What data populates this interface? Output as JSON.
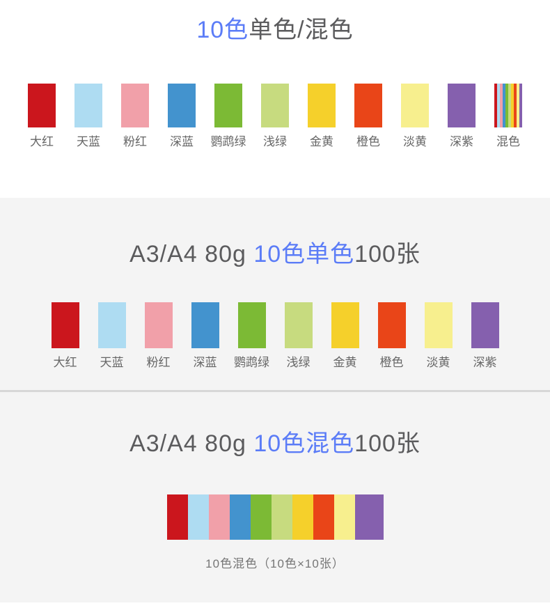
{
  "page": {
    "background": "#ffffff",
    "section_background": "#f4f4f4",
    "accent_blue": "#5b7cf7",
    "title_gray": "#5b5b5d",
    "label_gray": "#666666"
  },
  "colors": [
    {
      "name": "大红",
      "hex": "#cb161d"
    },
    {
      "name": "天蓝",
      "hex": "#aedcf2"
    },
    {
      "name": "粉红",
      "hex": "#f1a0a9"
    },
    {
      "name": "深蓝",
      "hex": "#4393ce"
    },
    {
      "name": "鹦鹉绿",
      "hex": "#7cba35"
    },
    {
      "name": "浅绿",
      "hex": "#c7db7f"
    },
    {
      "name": "金黄",
      "hex": "#f5d02b"
    },
    {
      "name": "橙色",
      "hex": "#e94518"
    },
    {
      "name": "淡黄",
      "hex": "#f7ef8e"
    },
    {
      "name": "深紫",
      "hex": "#8560ae"
    }
  ],
  "mixed_swatch": {
    "label": "混色"
  },
  "sections": {
    "intro": {
      "title_blue": "10色",
      "title_rest": "单色/混色"
    },
    "single": {
      "title_prefix": "A3/A4 80g ",
      "title_blue": "10色单色",
      "title_suffix": "100张"
    },
    "mixed": {
      "title_prefix": "A3/A4 80g ",
      "title_blue": "10色混色",
      "title_suffix": "100张",
      "caption": "10色混色（10色×10张）"
    }
  }
}
